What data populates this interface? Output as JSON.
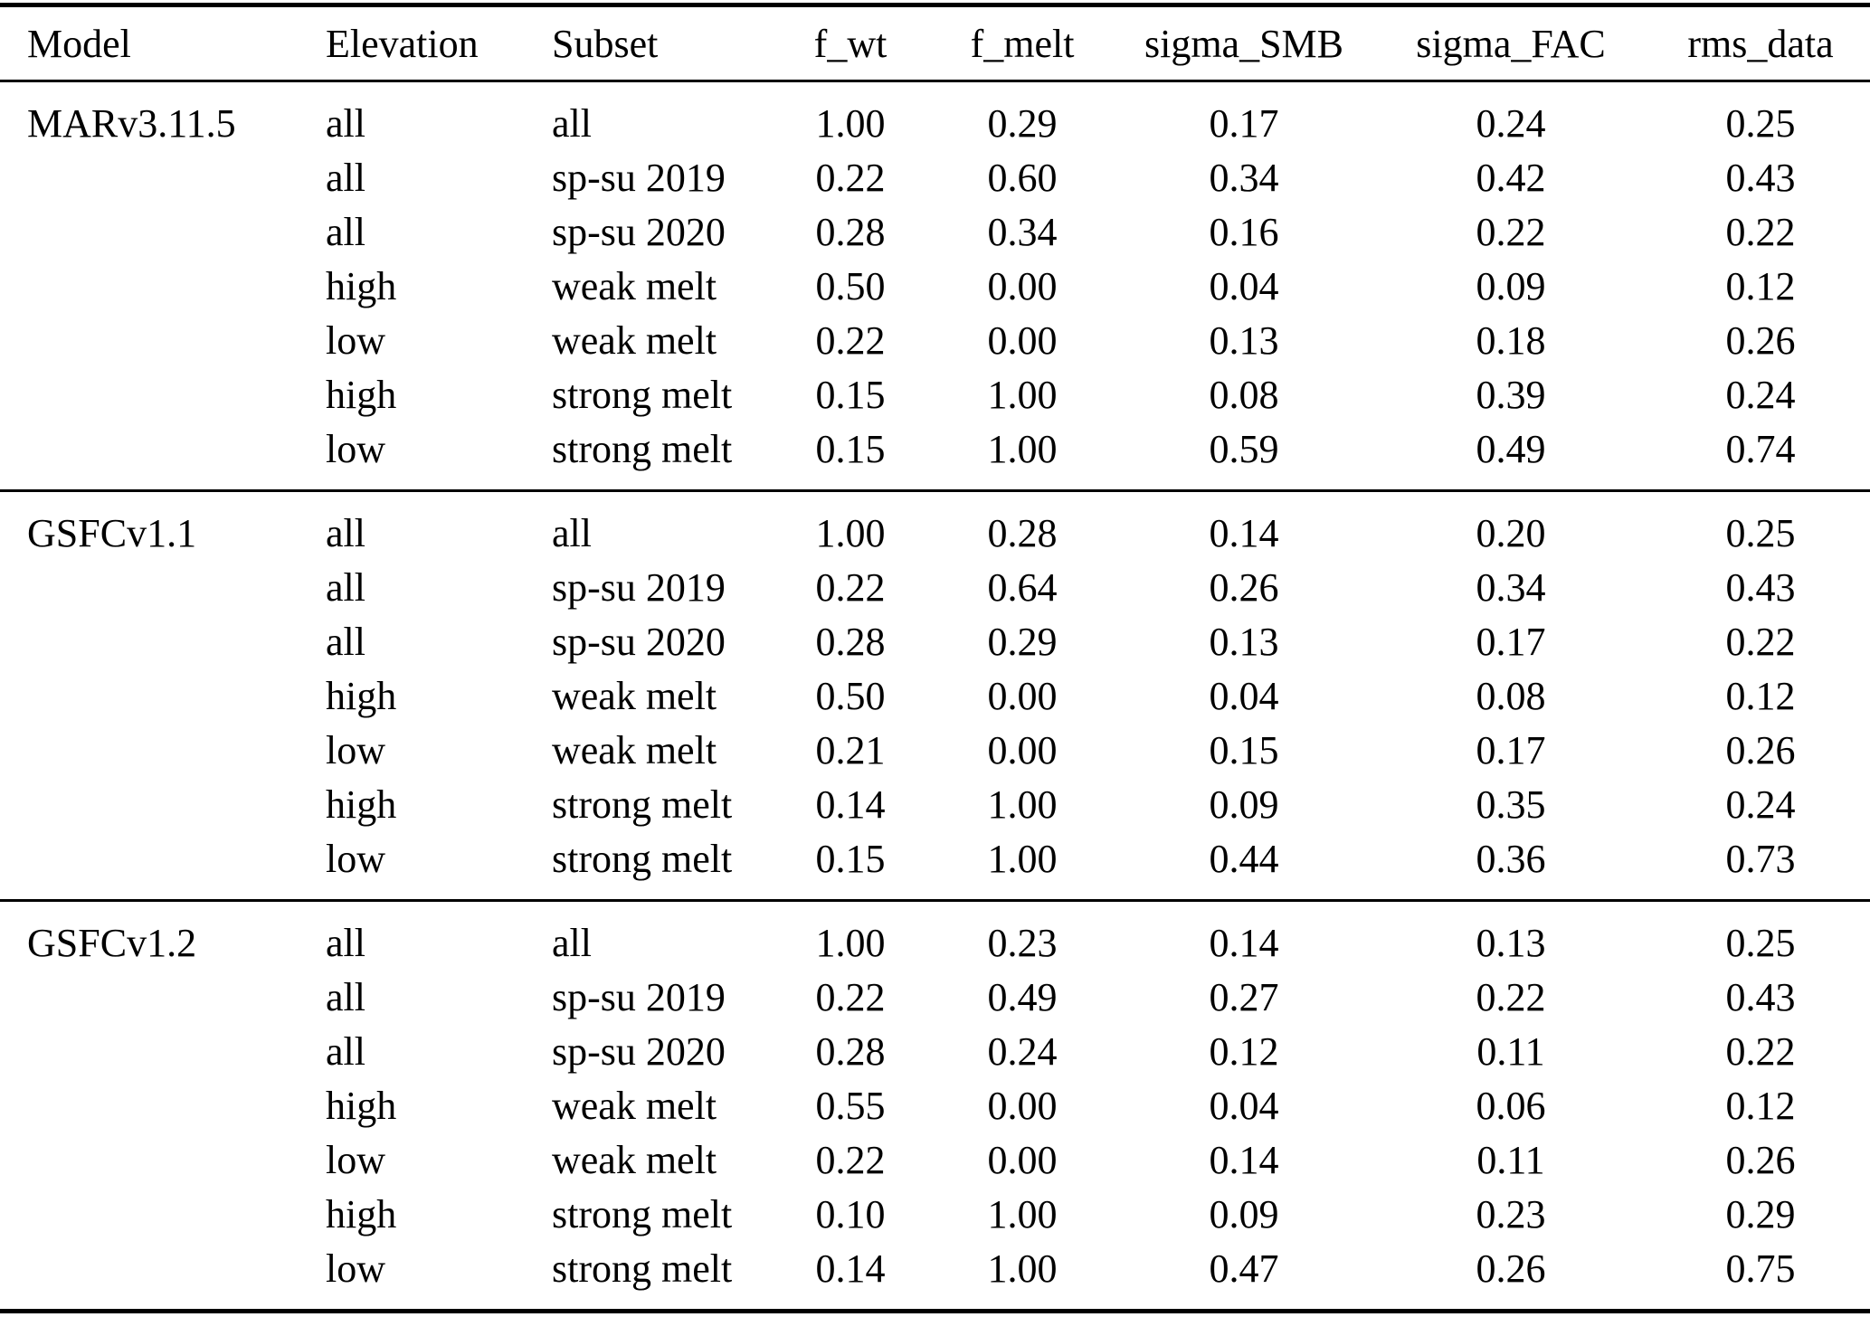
{
  "table": {
    "columns": [
      "Model",
      "Elevation",
      "Subset",
      "f_wt",
      "f_melt",
      "sigma_SMB",
      "sigma_FAC",
      "rms_data"
    ],
    "groups": [
      {
        "model": "MARv3.11.5",
        "rows": [
          {
            "elevation": "all",
            "subset": "all",
            "f_wt": "1.00",
            "f_melt": "0.29",
            "sigma_SMB": "0.17",
            "sigma_FAC": "0.24",
            "rms_data": "0.25"
          },
          {
            "elevation": "all",
            "subset": "sp-su 2019",
            "f_wt": "0.22",
            "f_melt": "0.60",
            "sigma_SMB": "0.34",
            "sigma_FAC": "0.42",
            "rms_data": "0.43"
          },
          {
            "elevation": "all",
            "subset": "sp-su 2020",
            "f_wt": "0.28",
            "f_melt": "0.34",
            "sigma_SMB": "0.16",
            "sigma_FAC": "0.22",
            "rms_data": "0.22"
          },
          {
            "elevation": "high",
            "subset": "weak melt",
            "f_wt": "0.50",
            "f_melt": "0.00",
            "sigma_SMB": "0.04",
            "sigma_FAC": "0.09",
            "rms_data": "0.12"
          },
          {
            "elevation": "low",
            "subset": "weak melt",
            "f_wt": "0.22",
            "f_melt": "0.00",
            "sigma_SMB": "0.13",
            "sigma_FAC": "0.18",
            "rms_data": "0.26"
          },
          {
            "elevation": "high",
            "subset": "strong melt",
            "f_wt": "0.15",
            "f_melt": "1.00",
            "sigma_SMB": "0.08",
            "sigma_FAC": "0.39",
            "rms_data": "0.24"
          },
          {
            "elevation": "low",
            "subset": "strong melt",
            "f_wt": "0.15",
            "f_melt": "1.00",
            "sigma_SMB": "0.59",
            "sigma_FAC": "0.49",
            "rms_data": "0.74"
          }
        ]
      },
      {
        "model": "GSFCv1.1",
        "rows": [
          {
            "elevation": "all",
            "subset": "all",
            "f_wt": "1.00",
            "f_melt": "0.28",
            "sigma_SMB": "0.14",
            "sigma_FAC": "0.20",
            "rms_data": "0.25"
          },
          {
            "elevation": "all",
            "subset": "sp-su 2019",
            "f_wt": "0.22",
            "f_melt": "0.64",
            "sigma_SMB": "0.26",
            "sigma_FAC": "0.34",
            "rms_data": "0.43"
          },
          {
            "elevation": "all",
            "subset": "sp-su 2020",
            "f_wt": "0.28",
            "f_melt": "0.29",
            "sigma_SMB": "0.13",
            "sigma_FAC": "0.17",
            "rms_data": "0.22"
          },
          {
            "elevation": "high",
            "subset": "weak melt",
            "f_wt": "0.50",
            "f_melt": "0.00",
            "sigma_SMB": "0.04",
            "sigma_FAC": "0.08",
            "rms_data": "0.12"
          },
          {
            "elevation": "low",
            "subset": "weak melt",
            "f_wt": "0.21",
            "f_melt": "0.00",
            "sigma_SMB": "0.15",
            "sigma_FAC": "0.17",
            "rms_data": "0.26"
          },
          {
            "elevation": "high",
            "subset": "strong melt",
            "f_wt": "0.14",
            "f_melt": "1.00",
            "sigma_SMB": "0.09",
            "sigma_FAC": "0.35",
            "rms_data": "0.24"
          },
          {
            "elevation": "low",
            "subset": "strong melt",
            "f_wt": "0.15",
            "f_melt": "1.00",
            "sigma_SMB": "0.44",
            "sigma_FAC": "0.36",
            "rms_data": "0.73"
          }
        ]
      },
      {
        "model": "GSFCv1.2",
        "rows": [
          {
            "elevation": "all",
            "subset": "all",
            "f_wt": "1.00",
            "f_melt": "0.23",
            "sigma_SMB": "0.14",
            "sigma_FAC": "0.13",
            "rms_data": "0.25"
          },
          {
            "elevation": "all",
            "subset": "sp-su 2019",
            "f_wt": "0.22",
            "f_melt": "0.49",
            "sigma_SMB": "0.27",
            "sigma_FAC": "0.22",
            "rms_data": "0.43"
          },
          {
            "elevation": "all",
            "subset": "sp-su 2020",
            "f_wt": "0.28",
            "f_melt": "0.24",
            "sigma_SMB": "0.12",
            "sigma_FAC": "0.11",
            "rms_data": "0.22"
          },
          {
            "elevation": "high",
            "subset": "weak melt",
            "f_wt": "0.55",
            "f_melt": "0.00",
            "sigma_SMB": "0.04",
            "sigma_FAC": "0.06",
            "rms_data": "0.12"
          },
          {
            "elevation": "low",
            "subset": "weak melt",
            "f_wt": "0.22",
            "f_melt": "0.00",
            "sigma_SMB": "0.14",
            "sigma_FAC": "0.11",
            "rms_data": "0.26"
          },
          {
            "elevation": "high",
            "subset": "strong melt",
            "f_wt": "0.10",
            "f_melt": "1.00",
            "sigma_SMB": "0.09",
            "sigma_FAC": "0.23",
            "rms_data": "0.29"
          },
          {
            "elevation": "low",
            "subset": "strong melt",
            "f_wt": "0.14",
            "f_melt": "1.00",
            "sigma_SMB": "0.47",
            "sigma_FAC": "0.26",
            "rms_data": "0.75"
          }
        ]
      }
    ]
  }
}
